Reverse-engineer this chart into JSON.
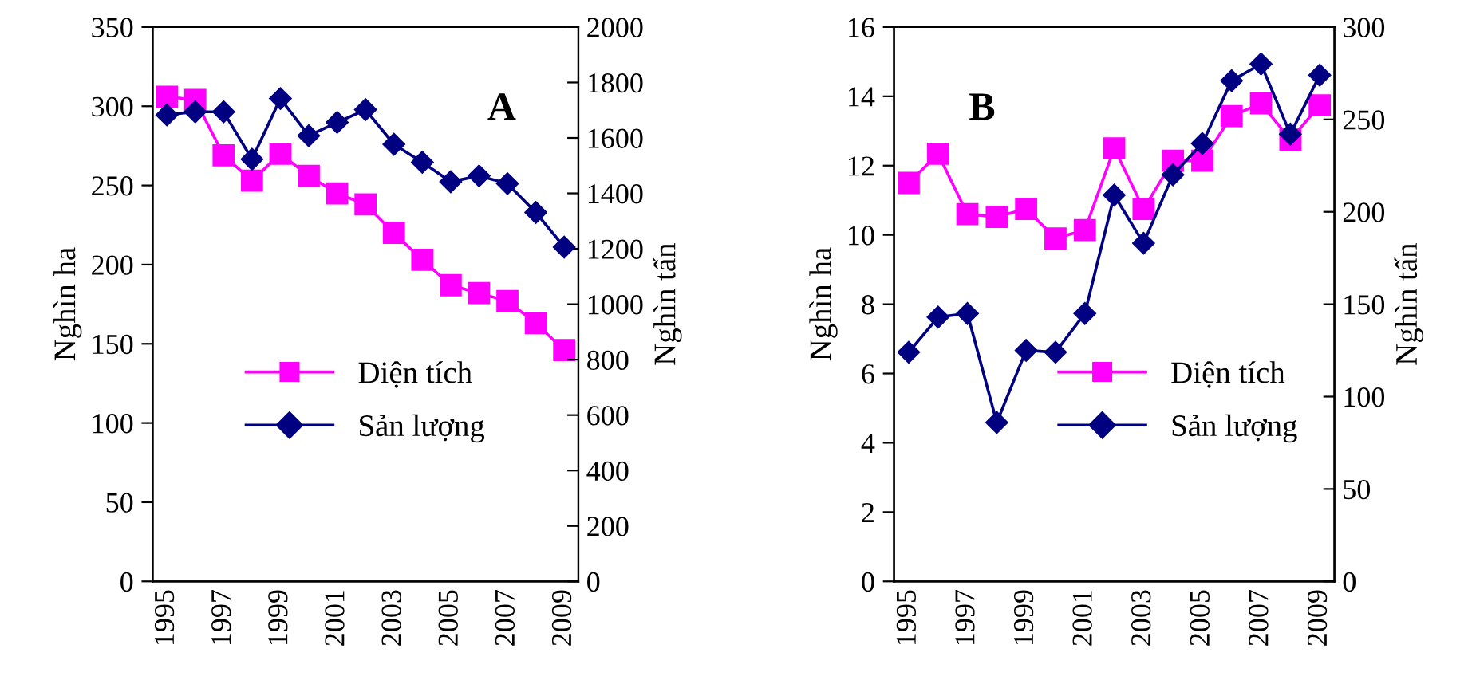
{
  "chart_data": [
    {
      "type": "line",
      "categories": [
        "1995",
        null,
        "1997",
        null,
        "1999",
        null,
        "2001",
        null,
        "2003",
        null,
        "2005",
        null,
        "2007",
        null,
        "2009"
      ],
      "ylabel": "Nghìn ha",
      "y2label": "Nghìn tấn",
      "ylim": [
        0,
        350
      ],
      "yticks": [
        0,
        50,
        100,
        150,
        200,
        250,
        300,
        350
      ],
      "y2lim": [
        0,
        2000
      ],
      "y2ticks": [
        0,
        200,
        400,
        600,
        800,
        1000,
        1200,
        1400,
        1600,
        1800,
        2000
      ],
      "annotations": [
        "A"
      ],
      "legend": "bottom",
      "grid": false,
      "line_style": "solid",
      "series": [
        {
          "name": "Diện tích",
          "color": "#ff00ff",
          "marker": "square",
          "values": [
            306,
            304,
            269,
            253,
            270,
            256,
            245,
            238,
            220,
            203,
            187,
            182,
            177,
            163,
            146
          ]
        },
        {
          "name": "Sản lượng",
          "color": "#000080",
          "marker": "diamond",
          "axis": "y2",
          "values": [
            1683,
            1694,
            1694,
            1523,
            1742,
            1608,
            1656,
            1702,
            1577,
            1512,
            1442,
            1463,
            1435,
            1331,
            1206
          ]
        }
      ]
    },
    {
      "type": "line",
      "categories": [
        "1995",
        null,
        "1997",
        null,
        "1999",
        null,
        "2001",
        null,
        "2003",
        null,
        "2005",
        null,
        "2007",
        null,
        "2009"
      ],
      "ylabel": "Nghìn ha",
      "y2label": "Nghìn tấn",
      "ylim": [
        0,
        16
      ],
      "yticks": [
        0,
        2,
        4,
        6,
        8,
        10,
        12,
        14,
        16
      ],
      "y2lim": [
        0,
        300
      ],
      "y2ticks": [
        0,
        50,
        100,
        150,
        200,
        250,
        300
      ],
      "annotations": [
        "B"
      ],
      "legend": "bottom right",
      "grid": false,
      "line_style": "solid",
      "series": [
        {
          "name": "Diện tích",
          "color": "#ff00ff",
          "marker": "square",
          "values": [
            11.5,
            12.34,
            10.6,
            10.52,
            10.75,
            9.9,
            10.14,
            12.5,
            10.75,
            12.14,
            12.14,
            13.43,
            13.8,
            12.75,
            13.74
          ]
        },
        {
          "name": "Sản lượng",
          "color": "#000080",
          "marker": "diamond",
          "axis": "y2",
          "values": [
            124,
            143,
            145,
            86,
            125,
            124,
            145,
            209,
            183,
            220,
            237,
            271,
            280,
            242,
            274
          ]
        }
      ]
    }
  ]
}
